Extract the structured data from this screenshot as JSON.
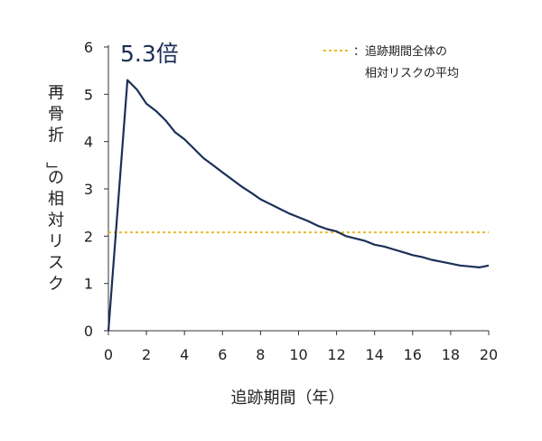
{
  "chart_data": {
    "type": "line",
    "xlabel": "追跡期間（年）",
    "ylabel": "「再骨折」の相対リスク",
    "xlim": [
      0,
      20
    ],
    "ylim": [
      0,
      6
    ],
    "x_ticks": [
      0,
      2,
      4,
      6,
      8,
      10,
      12,
      14,
      16,
      18,
      20
    ],
    "y_ticks": [
      0,
      1,
      2,
      3,
      4,
      5,
      6
    ],
    "grid": false,
    "legend_position": "top-right",
    "colors": {
      "series": "#1b2f57",
      "average": "#e8bd27"
    },
    "series": [
      {
        "x": [
          0,
          1,
          1.5,
          2,
          2.5,
          3,
          3.5,
          4,
          4.5,
          5,
          5.5,
          6,
          6.5,
          7,
          7.5,
          8,
          8.5,
          9,
          9.5,
          10,
          10.5,
          11,
          11.5,
          12,
          12.5,
          13,
          13.5,
          14,
          14.5,
          15,
          15.5,
          16,
          16.5,
          17,
          17.5,
          18,
          18.5,
          19,
          19.5,
          20
        ],
        "y": [
          0,
          5.3,
          5.1,
          4.8,
          4.65,
          4.45,
          4.2,
          4.05,
          3.85,
          3.65,
          3.5,
          3.35,
          3.2,
          3.05,
          2.92,
          2.78,
          2.68,
          2.58,
          2.48,
          2.4,
          2.32,
          2.22,
          2.15,
          2.1,
          2.0,
          1.95,
          1.9,
          1.82,
          1.78,
          1.72,
          1.66,
          1.6,
          1.56,
          1.5,
          1.46,
          1.42,
          1.38,
          1.36,
          1.34,
          1.38
        ]
      }
    ],
    "reference_line": {
      "y": 2.08,
      "style": "dotted"
    },
    "legend": {
      "line1": "：追跡期間全体の",
      "line2": "相対リスクの平均"
    },
    "annotation": {
      "text": "5.3倍",
      "x": 1,
      "y": 5.3
    }
  }
}
